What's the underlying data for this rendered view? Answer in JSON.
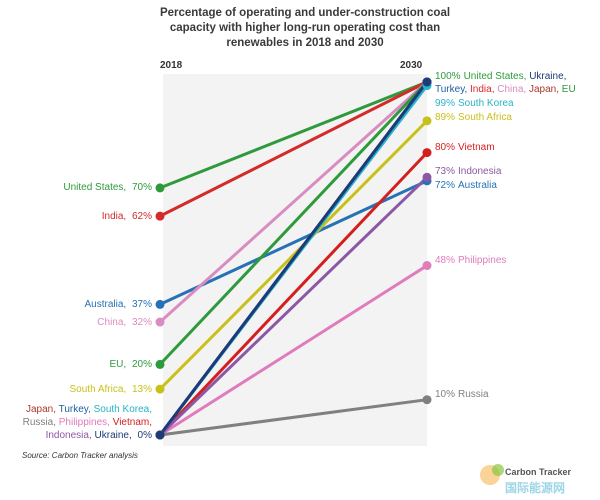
{
  "chart_data": {
    "type": "slope",
    "title": "Percentage of operating and under-construction coal capacity with higher long-run operating cost than renewables in 2018 and 2030",
    "categories": [
      "2018",
      "2030"
    ],
    "ylim": [
      0,
      100
    ],
    "series": [
      {
        "name": "United States",
        "color": "#2e9a3c",
        "values": [
          70,
          100
        ],
        "value_labels": [
          "70%",
          "100%"
        ]
      },
      {
        "name": "India",
        "color": "#d42a2a",
        "values": [
          62,
          100
        ],
        "value_labels": [
          "62%",
          "100%"
        ]
      },
      {
        "name": "Australia",
        "color": "#2772b5",
        "values": [
          37,
          72
        ],
        "value_labels": [
          "37%",
          "72%"
        ]
      },
      {
        "name": "China",
        "color": "#d98cc2",
        "values": [
          32,
          100
        ],
        "value_labels": [
          "32%",
          "100%"
        ]
      },
      {
        "name": "EU",
        "color": "#2e9a3c",
        "values": [
          20,
          100
        ],
        "value_labels": [
          "20%",
          "100%"
        ]
      },
      {
        "name": "South Africa",
        "color": "#c8c11a",
        "values": [
          13,
          89
        ],
        "value_labels": [
          "13%",
          "89%"
        ]
      },
      {
        "name": "Japan",
        "color": "#a8392c",
        "values": [
          0,
          100
        ],
        "value_labels": [
          "0%",
          "100%"
        ]
      },
      {
        "name": "Turkey",
        "color": "#1d5f9e",
        "values": [
          0,
          100
        ],
        "value_labels": [
          "0%",
          "100%"
        ]
      },
      {
        "name": "South Korea",
        "color": "#27b3c8",
        "values": [
          0,
          99
        ],
        "value_labels": [
          "0%",
          "99%"
        ]
      },
      {
        "name": "Philippines",
        "color": "#e07bbd",
        "values": [
          0,
          48
        ],
        "value_labels": [
          "0%",
          "48%"
        ]
      },
      {
        "name": "Vietnam",
        "color": "#d41f1f",
        "values": [
          0,
          80
        ],
        "value_labels": [
          "0%",
          "80%"
        ]
      },
      {
        "name": "Indonesia",
        "color": "#8c58a6",
        "values": [
          0,
          73
        ],
        "value_labels": [
          "0%",
          "73%"
        ]
      },
      {
        "name": "Russia",
        "color": "#808080",
        "values": [
          0,
          10
        ],
        "value_labels": [
          "0%",
          "10%"
        ]
      },
      {
        "name": "Ukraine",
        "color": "#1c3b78",
        "values": [
          0,
          100
        ],
        "value_labels": [
          "0%",
          "100%"
        ]
      }
    ],
    "start_labels": [
      [
        "United States"
      ],
      [
        "India"
      ],
      [
        "Australia"
      ],
      [
        "China"
      ],
      [
        "EU"
      ],
      [
        "South Africa"
      ],
      [
        "Japan",
        "Turkey",
        "South Korea",
        "Russia",
        "Philippines",
        "Vietnam",
        "Indonesia",
        "Ukraine"
      ]
    ],
    "end_labels": [
      [
        "United States",
        "Ukraine",
        "Turkey",
        "India",
        "China",
        "Japan",
        "EU"
      ],
      [
        "South Korea"
      ],
      [
        "South Africa"
      ],
      [
        "Vietnam"
      ],
      [
        "Indonesia"
      ],
      [
        "Australia"
      ],
      [
        "Philippines"
      ],
      [
        "Russia"
      ]
    ],
    "source": "Source: Carbon Tracker analysis",
    "watermark": [
      "Carbon Tracker",
      "国际能源网"
    ]
  }
}
